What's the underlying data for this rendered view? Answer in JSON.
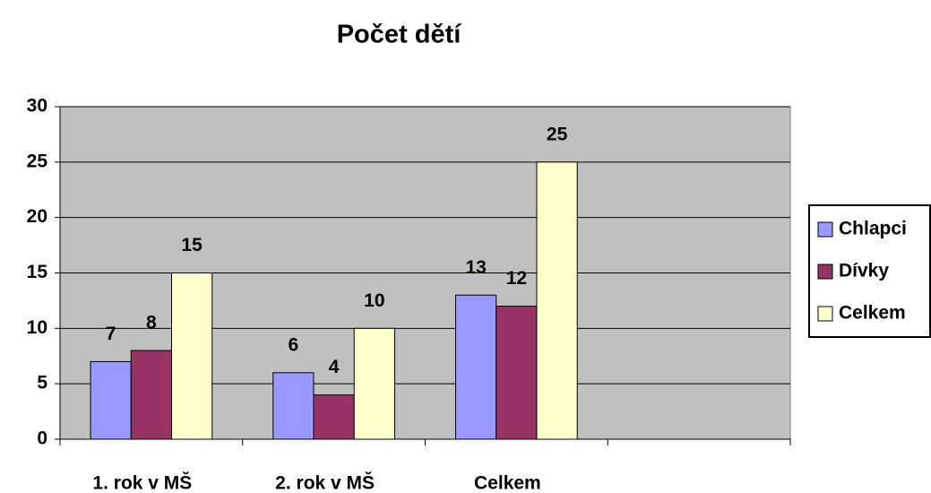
{
  "chart_data": {
    "type": "bar",
    "title": "Počet dětí",
    "categories": [
      "1. rok v MŠ",
      "2. rok v MŠ",
      "Celkem",
      null
    ],
    "series": [
      {
        "name": "Chlapci",
        "color": "#9999ff",
        "values": [
          7,
          6,
          13,
          null
        ]
      },
      {
        "name": "Dívky",
        "color": "#993366",
        "values": [
          8,
          4,
          12,
          null
        ]
      },
      {
        "name": "Celkem",
        "color": "#ffffcc",
        "values": [
          15,
          10,
          25,
          null
        ]
      }
    ],
    "ylim": [
      0,
      30
    ],
    "yticks": [
      0,
      5,
      10,
      15,
      20,
      25,
      30
    ],
    "grid": true,
    "legend": "right"
  }
}
